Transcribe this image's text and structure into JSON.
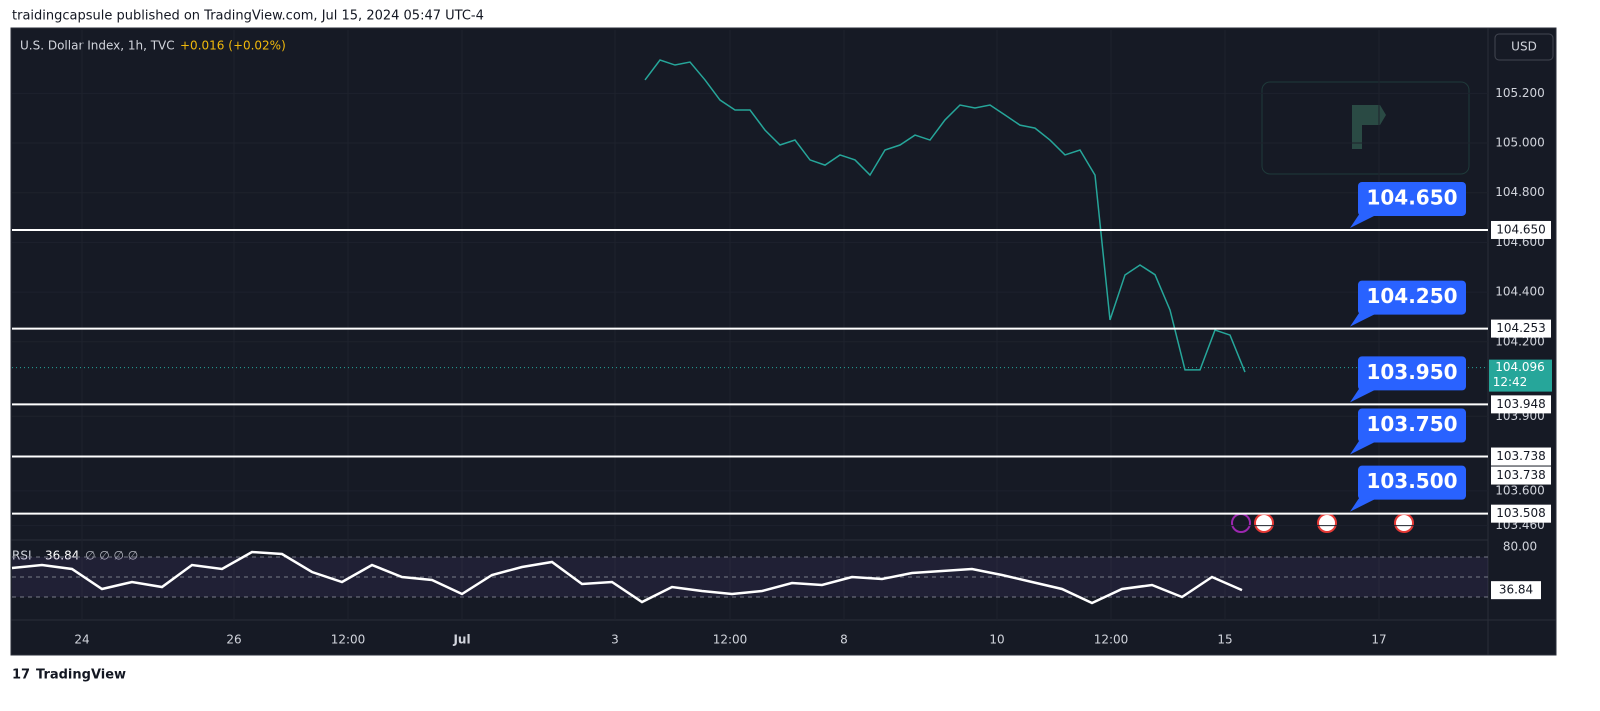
{
  "header": "traidingcapsule published on TradingView.com, Jul 15, 2024 05:47 UTC-4",
  "footer": "TradingView",
  "chart_data": {
    "type": "line",
    "title": "U.S. Dollar Index, 1h, TVC",
    "change": "+0.016 (+0.02%)",
    "currency": "USD",
    "color": "#26a69a",
    "ylim": [
      103.402,
      105.455
    ],
    "yticks": [
      {
        "value": 105.2,
        "label": "105.200"
      },
      {
        "value": 105.0,
        "label": "105.000"
      },
      {
        "value": 104.8,
        "label": "104.800"
      },
      {
        "value": 104.6,
        "label": "104.600"
      },
      {
        "value": 104.4,
        "label": "104.400"
      },
      {
        "value": 104.2,
        "label": "104.200"
      },
      {
        "value": 103.9,
        "label": "103.900"
      },
      {
        "value": 103.6,
        "label": "103.600"
      },
      {
        "value": 103.46,
        "label": "103.460"
      }
    ],
    "xtick_labels": [
      "24",
      "26",
      "12:00",
      "Jul",
      "3",
      "12:00",
      "8",
      "10",
      "12:00",
      "15",
      "17"
    ],
    "grid": true,
    "values": [
      105.254,
      105.334,
      105.314,
      105.326,
      105.254,
      105.173,
      105.133,
      105.133,
      105.052,
      104.992,
      105.012,
      104.932,
      104.911,
      104.952,
      104.932,
      104.871,
      104.972,
      104.992,
      105.032,
      105.012,
      105.093,
      105.153,
      105.141,
      105.153,
      105.113,
      105.072,
      105.06,
      105.012,
      104.952,
      104.972,
      104.871,
      104.288,
      104.469,
      104.509,
      104.47,
      104.328,
      104.087,
      104.087,
      104.247,
      104.227,
      104.078
    ],
    "levels": [
      {
        "value": 104.65,
        "label": "104.650",
        "callout": "104.650"
      },
      {
        "value": 104.253,
        "label": "104.253",
        "callout": "104.250"
      },
      {
        "value": 103.948,
        "label": "103.948",
        "callout": "103.950"
      },
      {
        "value": 103.738,
        "label": "103.738",
        "callout": "103.750",
        "label_2": "103.738"
      },
      {
        "value": 103.508,
        "label": "103.508",
        "callout": "103.500"
      }
    ],
    "last_price": 104.096,
    "countdown": "12:42",
    "rsi": {
      "title": "RSI",
      "value": 36.84,
      "icons": "∅ ∅ ∅ ∅",
      "ylim": [
        22,
        87
      ],
      "yticks": [
        {
          "value": 80,
          "label": "80.00"
        }
      ],
      "bands": [
        70,
        50,
        30
      ],
      "color": "#ffffff",
      "values": [
        59,
        62,
        58,
        38,
        45,
        40,
        62,
        58,
        75,
        73,
        55,
        45,
        62,
        50,
        47,
        33,
        52,
        60,
        65,
        43,
        45,
        25,
        40,
        36,
        33,
        36,
        44,
        42,
        50,
        48,
        54,
        56,
        58,
        52,
        45,
        38,
        24,
        38,
        42,
        30,
        50,
        36.84
      ]
    }
  }
}
